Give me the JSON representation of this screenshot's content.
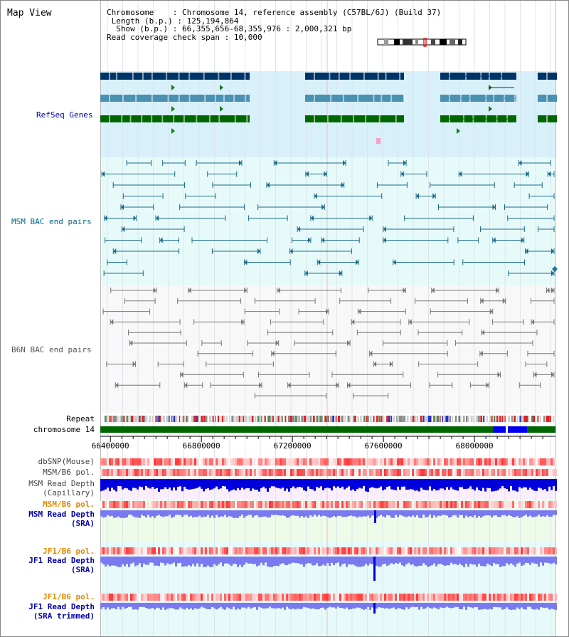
{
  "title": "Map View",
  "info": {
    "chromosome_label": "Chromosome",
    "chromosome_value": "Chromosome 14, reference assembly (C57BL/6J) (Build 37)",
    "length_label": "Length (b.p.)",
    "length_value": "125,194,864",
    "show_label": "Show (b.p.)",
    "show_value": "66,355,656-68,355,976 : 2,000,321 bp",
    "coverage_label": "Read coverage check span",
    "coverage_value": "10,000"
  },
  "tracks": {
    "refseq": "RefSeq Genes",
    "msm_bac": "MSM BAC end pairs",
    "b6n_bac": "B6N BAC end pairs",
    "repeat": "Repeat",
    "chromosome": "chromosome 14",
    "dbsnp": "dbSNP(Mouse)",
    "msm_pol": "MSM/B6 pol.",
    "msm_depth_cap_1": "MSM Read Depth",
    "msm_depth_cap_2": "(Capillary)",
    "msm_pol_2": "MSM/B6 pol.",
    "msm_depth_sra_1": "MSM Read Depth",
    "msm_depth_sra_2": "(SRA)",
    "jf1_pol": "JF1/B6 pol.",
    "jf1_depth_sra_1": "JF1 Read Depth",
    "jf1_depth_sra_2": "(SRA)",
    "jf1_pol_2": "JF1/B6 pol.",
    "jf1_depth_trim_1": "JF1 Read Depth",
    "jf1_depth_trim_2": "(SRA trimmed)"
  },
  "axis": {
    "range_bp": [
      66355656,
      68355976
    ],
    "ticks": [
      "66400000",
      "66800000",
      "67200000",
      "67600000",
      "68000000"
    ],
    "tick_values": [
      66400000,
      66800000,
      67200000,
      67600000,
      68000000
    ]
  },
  "colors": {
    "refseq_label": "#0000aa",
    "msm_label": "#006688",
    "b6n_label": "#555555",
    "orange_label": "#e08a00",
    "blue_label": "#0000aa",
    "refseq_bg": "#d8f0fa",
    "msm_bg": "#e6fafa",
    "b6n_bg": "#f8f8f8",
    "chromosome": "#006600",
    "depth_dark": "#0000dd",
    "depth_light": "#7a7af0"
  }
}
